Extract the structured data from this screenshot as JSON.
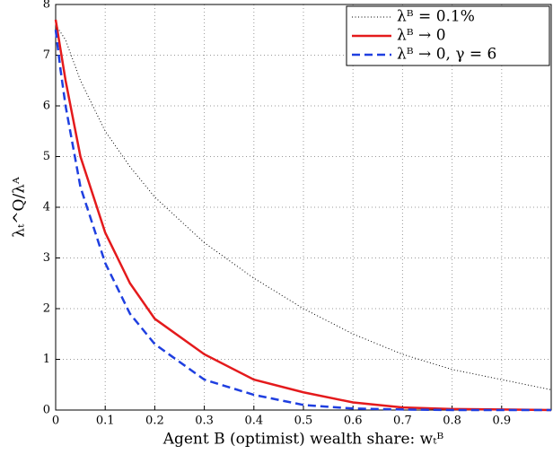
{
  "chart_data": {
    "type": "line",
    "x_label": "Agent B (optimist) wealth share: wₜᴮ",
    "y_label": "λₜ^Q/λᴬ",
    "x": [
      0,
      0.01,
      0.02,
      0.05,
      0.1,
      0.15,
      0.2,
      0.3,
      0.4,
      0.5,
      0.6,
      0.7,
      0.8,
      0.9,
      1
    ],
    "series": [
      {
        "name": "λᴮ = 0.1%",
        "color": "#000000",
        "dash": "dotted",
        "values": [
          7.6,
          7.45,
          7.3,
          6.5,
          5.5,
          4.8,
          4.2,
          3.3,
          2.6,
          2.0,
          1.5,
          1.1,
          0.8,
          0.6,
          0.4
        ]
      },
      {
        "name": "λᴮ → 0",
        "color": "#e41a1c",
        "dash": "solid",
        "values": [
          7.7,
          7.1,
          6.5,
          5.0,
          3.5,
          2.5,
          1.8,
          1.1,
          0.6,
          0.35,
          0.15,
          0.05,
          0.02,
          0.01,
          0
        ]
      },
      {
        "name": "λᴮ → 0, γ = 6",
        "color": "#1f3fe0",
        "dash": "dashed",
        "values": [
          7.5,
          6.7,
          6.0,
          4.4,
          2.9,
          1.9,
          1.3,
          0.6,
          0.3,
          0.1,
          0.03,
          0.01,
          0,
          0,
          0
        ]
      }
    ],
    "xlim": [
      0,
      1
    ],
    "xticks": [
      0,
      0.1,
      0.2,
      0.3,
      0.4,
      0.5,
      0.6,
      0.7,
      0.8,
      0.9
    ],
    "ylim": [
      0,
      8
    ],
    "yticks": [
      0,
      1,
      2,
      3,
      4,
      5,
      6,
      7,
      8
    ],
    "grid": true,
    "legend": "top-right"
  }
}
